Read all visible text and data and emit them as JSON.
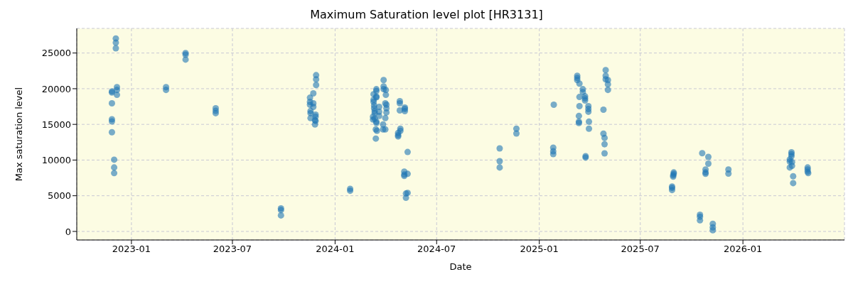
{
  "chart_data": {
    "type": "scatter",
    "title": "Maximum Saturation level plot [HR3131]",
    "xlabel": "Date",
    "ylabel": "Max saturation level",
    "xlim": [
      "2022-09-25",
      "2026-07-02"
    ],
    "xticks": [
      {
        "value": "2023-01-01",
        "label": "2023-01"
      },
      {
        "value": "2023-07-01",
        "label": "2023-07"
      },
      {
        "value": "2024-01-01",
        "label": "2024-01"
      },
      {
        "value": "2024-07-01",
        "label": "2024-07"
      },
      {
        "value": "2025-01-01",
        "label": "2025-01"
      },
      {
        "value": "2025-07-01",
        "label": "2025-07"
      },
      {
        "value": "2026-01-01",
        "label": "2026-01"
      }
    ],
    "ylim": [
      -1200,
      28450
    ],
    "yticks": [
      0,
      5000,
      10000,
      15000,
      20000,
      25000
    ],
    "grid": true,
    "marker": "circle",
    "series": [
      {
        "color": "#1f77b4",
        "x": [
          "2022-12-04",
          "2022-12-04",
          "2022-12-04",
          "2022-11-27",
          "2022-11-27",
          "2022-12-06",
          "2022-12-06",
          "2022-12-06",
          "2022-11-27",
          "2022-11-27",
          "2022-11-27",
          "2022-11-27",
          "2022-12-01",
          "2022-12-01",
          "2022-12-01",
          "2023-03-04",
          "2023-03-04",
          "2023-04-08",
          "2023-04-08",
          "2023-04-08",
          "2023-06-01",
          "2023-06-01",
          "2023-06-01",
          "2023-09-26",
          "2023-09-26",
          "2023-09-26",
          "2023-11-28",
          "2023-11-28",
          "2023-11-28",
          "2023-11-23",
          "2023-11-17",
          "2023-11-17",
          "2023-11-17",
          "2023-11-23",
          "2023-11-23",
          "2023-11-18",
          "2023-11-18",
          "2023-11-18",
          "2023-11-27",
          "2023-11-27",
          "2023-11-26",
          "2023-11-27",
          "2023-11-26",
          "2024-01-28",
          "2024-01-28",
          "2024-03-10",
          "2024-03-15",
          "2024-03-15",
          "2024-03-15",
          "2024-03-15",
          "2024-03-10",
          "2024-03-10",
          "2024-03-11",
          "2024-03-11",
          "2024-03-12",
          "2024-03-12",
          "2024-03-09",
          "2024-03-09",
          "2024-03-12",
          "2024-03-15",
          "2024-03-15",
          "2024-03-14",
          "2024-03-16",
          "2024-03-14",
          "2024-03-20",
          "2024-03-20",
          "2024-03-20",
          "2024-03-28",
          "2024-03-28",
          "2024-03-28",
          "2024-04-01",
          "2024-04-01",
          "2024-03-31",
          "2024-04-02",
          "2024-04-02",
          "2024-04-02",
          "2024-03-31",
          "2024-03-27",
          "2024-03-27",
          "2024-03-31",
          "2024-04-26",
          "2024-04-26",
          "2024-04-26",
          "2024-05-05",
          "2024-05-05",
          "2024-05-05",
          "2024-04-27",
          "2024-04-27",
          "2024-04-23",
          "2024-04-23",
          "2024-04-23",
          "2024-05-10",
          "2024-05-04",
          "2024-05-04",
          "2024-05-04",
          "2024-05-10",
          "2024-05-07",
          "2024-05-10",
          "2024-05-07",
          "2024-10-22",
          "2024-10-22",
          "2024-10-22",
          "2024-11-21",
          "2024-11-21",
          "2025-01-27",
          "2025-01-26",
          "2025-01-26",
          "2025-01-26",
          "2025-03-10",
          "2025-03-10",
          "2025-03-10",
          "2025-03-14",
          "2025-03-20",
          "2025-03-20",
          "2025-03-14",
          "2025-03-24",
          "2025-03-24",
          "2025-03-24",
          "2025-03-14",
          "2025-03-30",
          "2025-03-30",
          "2025-03-30",
          "2025-03-13",
          "2025-03-13",
          "2025-03-13",
          "2025-03-31",
          "2025-03-31",
          "2025-03-25",
          "2025-03-25",
          "2025-04-30",
          "2025-04-30",
          "2025-04-30",
          "2025-05-04",
          "2025-05-04",
          "2025-05-04",
          "2025-04-26",
          "2025-04-26",
          "2025-04-28",
          "2025-04-28",
          "2025-04-28",
          "2025-08-30",
          "2025-08-30",
          "2025-08-29",
          "2025-08-29",
          "2025-08-27",
          "2025-08-27",
          "2025-08-27",
          "2025-10-20",
          "2025-10-31",
          "2025-10-31",
          "2025-10-26",
          "2025-10-26",
          "2025-10-26",
          "2025-10-16",
          "2025-10-16",
          "2025-10-16",
          "2025-11-08",
          "2025-11-08",
          "2025-11-08",
          "2025-12-06",
          "2025-12-06",
          "2026-03-29",
          "2026-03-29",
          "2026-03-29",
          "2026-03-26",
          "2026-03-26",
          "2026-03-30",
          "2026-03-30",
          "2026-03-26",
          "2026-04-01",
          "2026-04-01",
          "2026-04-27",
          "2026-04-27",
          "2026-04-27",
          "2026-04-28"
        ],
        "values": [
          27040,
          26450,
          25660,
          19630,
          19460,
          20220,
          19830,
          19140,
          17950,
          15710,
          15410,
          13900,
          10050,
          8960,
          8170,
          20220,
          19830,
          25000,
          24770,
          24080,
          17260,
          16900,
          16570,
          3230,
          2990,
          2240,
          21900,
          21310,
          20520,
          19340,
          18740,
          18150,
          17750,
          17950,
          17460,
          16870,
          16570,
          15880,
          16370,
          16080,
          15580,
          15480,
          14990,
          5960,
          5700,
          19230,
          19930,
          19690,
          18800,
          18900,
          18450,
          18150,
          17650,
          17260,
          16860,
          16570,
          16080,
          15680,
          15780,
          15380,
          15190,
          14300,
          14100,
          13010,
          17460,
          16770,
          16180,
          21210,
          20320,
          19930,
          19830,
          19140,
          17950,
          17750,
          17260,
          16670,
          15880,
          14990,
          14300,
          14300,
          18250,
          17950,
          16960,
          17360,
          17160,
          16860,
          14400,
          14100,
          13800,
          13500,
          13310,
          11130,
          8370,
          7970,
          7780,
          8070,
          5310,
          5400,
          4710,
          11630,
          9850,
          8960,
          14400,
          13730,
          17750,
          11730,
          11230,
          10840,
          21810,
          21510,
          21210,
          20720,
          19930,
          19530,
          18840,
          18940,
          18640,
          18350,
          17560,
          17560,
          17160,
          16770,
          16180,
          15380,
          15190,
          15380,
          14400,
          10540,
          10350,
          22600,
          21810,
          21310,
          21210,
          20620,
          19830,
          17060,
          13700,
          13110,
          12220,
          10940,
          8270,
          8070,
          7870,
          7670,
          6290,
          6100,
          5800,
          10970,
          10440,
          9490,
          8670,
          8270,
          8070,
          2340,
          2050,
          1550,
          1060,
          560,
          170,
          8670,
          8100,
          11090,
          10840,
          10540,
          10080,
          9790,
          9720,
          9190,
          8960,
          7730,
          6770,
          8960,
          8670,
          8370,
          8170
        ]
      }
    ]
  }
}
